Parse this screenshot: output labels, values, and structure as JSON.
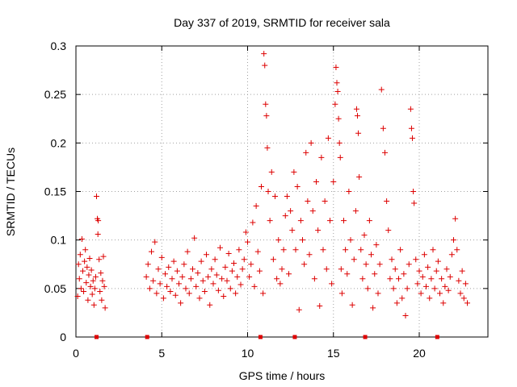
{
  "chart_data": {
    "type": "scatter",
    "title": "Day 337 of 2019, SRMTID for receiver sala",
    "xlabel": "GPS time / hours",
    "ylabel": "SRMTID / TECUs",
    "xlim": [
      0,
      24
    ],
    "ylim": [
      0,
      0.3
    ],
    "x_ticks": [
      0,
      5,
      10,
      15,
      20
    ],
    "x_tick_labels": [
      "0",
      "5",
      "10",
      "15",
      "20"
    ],
    "y_ticks": [
      0,
      0.05,
      0.1,
      0.15,
      0.2,
      0.25,
      0.3
    ],
    "y_tick_labels": [
      "0",
      "0.05",
      "0.1",
      "0.15",
      "0.2",
      "0.25",
      "0.3"
    ],
    "grid": true,
    "marker": "plus",
    "series": [
      {
        "name": "SRMTID",
        "color": "#dd0000",
        "points": [
          [
            0.1,
            0.042
          ],
          [
            0.15,
            0.075
          ],
          [
            0.2,
            0.06
          ],
          [
            0.25,
            0.085
          ],
          [
            0.3,
            0.05
          ],
          [
            0.35,
            0.101
          ],
          [
            0.4,
            0.068
          ],
          [
            0.45,
            0.047
          ],
          [
            0.5,
            0.078
          ],
          [
            0.55,
            0.09
          ],
          [
            0.6,
            0.056
          ],
          [
            0.65,
            0.072
          ],
          [
            0.7,
            0.038
          ],
          [
            0.75,
            0.064
          ],
          [
            0.8,
            0.081
          ],
          [
            0.85,
            0.052
          ],
          [
            0.9,
            0.069
          ],
          [
            0.95,
            0.044
          ],
          [
            1.0,
            0.058
          ],
          [
            1.05,
            0.033
          ],
          [
            1.1,
            0.05
          ],
          [
            1.15,
            0.062
          ],
          [
            1.2,
            0.145
          ],
          [
            1.25,
            0.122
          ],
          [
            1.28,
            0.106
          ],
          [
            1.3,
            0.12
          ],
          [
            1.35,
            0.08
          ],
          [
            1.4,
            0.047
          ],
          [
            1.45,
            0.066
          ],
          [
            1.5,
            0.038
          ],
          [
            1.55,
            0.058
          ],
          [
            1.6,
            0.083
          ],
          [
            1.65,
            0.052
          ],
          [
            1.7,
            0.03
          ],
          [
            4.1,
            0.062
          ],
          [
            4.2,
            0.075
          ],
          [
            4.3,
            0.05
          ],
          [
            4.4,
            0.088
          ],
          [
            4.5,
            0.058
          ],
          [
            4.6,
            0.098
          ],
          [
            4.7,
            0.045
          ],
          [
            4.8,
            0.07
          ],
          [
            4.9,
            0.055
          ],
          [
            5.0,
            0.082
          ],
          [
            5.1,
            0.04
          ],
          [
            5.2,
            0.065
          ],
          [
            5.3,
            0.052
          ],
          [
            5.4,
            0.072
          ],
          [
            5.5,
            0.047
          ],
          [
            5.6,
            0.06
          ],
          [
            5.7,
            0.078
          ],
          [
            5.8,
            0.043
          ],
          [
            5.9,
            0.068
          ],
          [
            6.0,
            0.055
          ],
          [
            6.1,
            0.035
          ],
          [
            6.2,
            0.062
          ],
          [
            6.3,
            0.075
          ],
          [
            6.4,
            0.05
          ],
          [
            6.5,
            0.088
          ],
          [
            6.6,
            0.045
          ],
          [
            6.7,
            0.06
          ],
          [
            6.8,
            0.07
          ],
          [
            6.9,
            0.102
          ],
          [
            7.0,
            0.052
          ],
          [
            7.1,
            0.066
          ],
          [
            7.2,
            0.04
          ],
          [
            7.3,
            0.078
          ],
          [
            7.4,
            0.058
          ],
          [
            7.5,
            0.047
          ],
          [
            7.6,
            0.085
          ],
          [
            7.7,
            0.062
          ],
          [
            7.8,
            0.033
          ],
          [
            7.9,
            0.07
          ],
          [
            8.0,
            0.055
          ],
          [
            8.1,
            0.08
          ],
          [
            8.2,
            0.064
          ],
          [
            8.3,
            0.048
          ],
          [
            8.4,
            0.092
          ],
          [
            8.5,
            0.06
          ],
          [
            8.6,
            0.042
          ],
          [
            8.7,
            0.072
          ],
          [
            8.8,
            0.058
          ],
          [
            8.9,
            0.086
          ],
          [
            9.0,
            0.05
          ],
          [
            9.1,
            0.068
          ],
          [
            9.2,
            0.076
          ],
          [
            9.3,
            0.045
          ],
          [
            9.4,
            0.062
          ],
          [
            9.5,
            0.09
          ],
          [
            9.6,
            0.054
          ],
          [
            9.7,
            0.07
          ],
          [
            9.8,
            0.08
          ],
          [
            9.9,
            0.108
          ],
          [
            10.0,
            0.098
          ],
          [
            10.1,
            0.062
          ],
          [
            10.2,
            0.075
          ],
          [
            10.3,
            0.118
          ],
          [
            10.4,
            0.052
          ],
          [
            10.5,
            0.135
          ],
          [
            10.6,
            0.088
          ],
          [
            10.7,
            0.068
          ],
          [
            10.8,
            0.155
          ],
          [
            10.9,
            0.045
          ],
          [
            10.95,
            0.292
          ],
          [
            11.0,
            0.28
          ],
          [
            11.05,
            0.24
          ],
          [
            11.1,
            0.228
          ],
          [
            11.15,
            0.195
          ],
          [
            11.2,
            0.15
          ],
          [
            11.3,
            0.12
          ],
          [
            11.4,
            0.17
          ],
          [
            11.5,
            0.08
          ],
          [
            11.6,
            0.145
          ],
          [
            11.7,
            0.06
          ],
          [
            11.8,
            0.1
          ],
          [
            11.9,
            0.055
          ],
          [
            12.0,
            0.07
          ],
          [
            12.1,
            0.09
          ],
          [
            12.2,
            0.125
          ],
          [
            12.3,
            0.145
          ],
          [
            12.4,
            0.065
          ],
          [
            12.5,
            0.13
          ],
          [
            12.6,
            0.11
          ],
          [
            12.7,
            0.17
          ],
          [
            12.8,
            0.09
          ],
          [
            12.9,
            0.155
          ],
          [
            13.0,
            0.028
          ],
          [
            13.1,
            0.12
          ],
          [
            13.2,
            0.1
          ],
          [
            13.3,
            0.075
          ],
          [
            13.4,
            0.19
          ],
          [
            13.5,
            0.14
          ],
          [
            13.6,
            0.085
          ],
          [
            13.7,
            0.2
          ],
          [
            13.8,
            0.13
          ],
          [
            13.9,
            0.06
          ],
          [
            14.0,
            0.16
          ],
          [
            14.1,
            0.11
          ],
          [
            14.2,
            0.032
          ],
          [
            14.3,
            0.185
          ],
          [
            14.4,
            0.09
          ],
          [
            14.5,
            0.14
          ],
          [
            14.6,
            0.07
          ],
          [
            14.7,
            0.205
          ],
          [
            14.8,
            0.12
          ],
          [
            14.9,
            0.055
          ],
          [
            15.0,
            0.16
          ],
          [
            15.1,
            0.24
          ],
          [
            15.15,
            0.278
          ],
          [
            15.2,
            0.262
          ],
          [
            15.25,
            0.253
          ],
          [
            15.3,
            0.225
          ],
          [
            15.35,
            0.2
          ],
          [
            15.4,
            0.185
          ],
          [
            15.45,
            0.07
          ],
          [
            15.5,
            0.045
          ],
          [
            15.6,
            0.12
          ],
          [
            15.7,
            0.09
          ],
          [
            15.8,
            0.065
          ],
          [
            15.9,
            0.15
          ],
          [
            16.0,
            0.1
          ],
          [
            16.1,
            0.033
          ],
          [
            16.2,
            0.08
          ],
          [
            16.3,
            0.13
          ],
          [
            16.35,
            0.235
          ],
          [
            16.4,
            0.228
          ],
          [
            16.45,
            0.21
          ],
          [
            16.5,
            0.165
          ],
          [
            16.6,
            0.09
          ],
          [
            16.7,
            0.06
          ],
          [
            16.8,
            0.105
          ],
          [
            16.9,
            0.075
          ],
          [
            17.0,
            0.05
          ],
          [
            17.1,
            0.12
          ],
          [
            17.2,
            0.085
          ],
          [
            17.3,
            0.03
          ],
          [
            17.4,
            0.065
          ],
          [
            17.5,
            0.095
          ],
          [
            17.6,
            0.045
          ],
          [
            17.7,
            0.075
          ],
          [
            17.8,
            0.255
          ],
          [
            17.9,
            0.215
          ],
          [
            18.0,
            0.19
          ],
          [
            18.1,
            0.14
          ],
          [
            18.2,
            0.11
          ],
          [
            18.3,
            0.06
          ],
          [
            18.4,
            0.08
          ],
          [
            18.5,
            0.05
          ],
          [
            18.6,
            0.07
          ],
          [
            18.7,
            0.035
          ],
          [
            18.8,
            0.06
          ],
          [
            18.9,
            0.09
          ],
          [
            19.0,
            0.04
          ],
          [
            19.1,
            0.065
          ],
          [
            19.2,
            0.022
          ],
          [
            19.3,
            0.05
          ],
          [
            19.4,
            0.075
          ],
          [
            19.5,
            0.235
          ],
          [
            19.55,
            0.215
          ],
          [
            19.6,
            0.205
          ],
          [
            19.65,
            0.15
          ],
          [
            19.7,
            0.138
          ],
          [
            19.8,
            0.08
          ],
          [
            19.9,
            0.055
          ],
          [
            20.0,
            0.068
          ],
          [
            20.1,
            0.045
          ],
          [
            20.2,
            0.062
          ],
          [
            20.3,
            0.085
          ],
          [
            20.4,
            0.052
          ],
          [
            20.5,
            0.072
          ],
          [
            20.6,
            0.04
          ],
          [
            20.7,
            0.06
          ],
          [
            20.8,
            0.09
          ],
          [
            20.9,
            0.05
          ],
          [
            21.0,
            0.068
          ],
          [
            21.1,
            0.078
          ],
          [
            21.2,
            0.045
          ],
          [
            21.3,
            0.06
          ],
          [
            21.4,
            0.035
          ],
          [
            21.5,
            0.052
          ],
          [
            21.6,
            0.07
          ],
          [
            21.7,
            0.048
          ],
          [
            21.8,
            0.062
          ],
          [
            21.9,
            0.085
          ],
          [
            22.0,
            0.1
          ],
          [
            22.1,
            0.122
          ],
          [
            22.2,
            0.09
          ],
          [
            22.3,
            0.058
          ],
          [
            22.4,
            0.045
          ],
          [
            22.5,
            0.068
          ],
          [
            22.6,
            0.04
          ],
          [
            22.7,
            0.055
          ],
          [
            22.8,
            0.035
          ]
        ],
        "zero_points": [
          1.2,
          4.15,
          10.75,
          12.75,
          16.85,
          21.05
        ]
      }
    ]
  }
}
